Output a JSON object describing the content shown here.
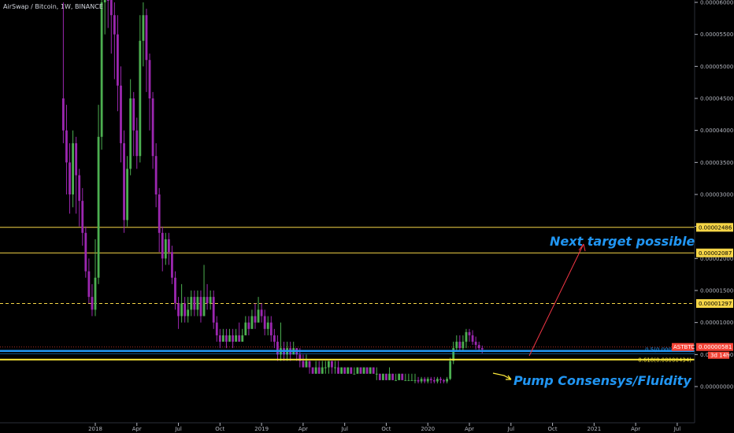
{
  "header": {
    "title": "AirSwap / Bitcoin, 1W, BINANCE"
  },
  "colors": {
    "up": "#4caf50",
    "down": "#9c27b0",
    "hline": "#f5d547",
    "support_blue": "#2196f3",
    "support_yellow": "#ffeb3b",
    "current_price": "#f44336",
    "annotation": "#2196f3",
    "arrow_red": "#f23645",
    "arrow_yellow": "#ffeb3b"
  },
  "chart_data": {
    "type": "candlestick",
    "symbol": "ASTBTC",
    "interval": "1W",
    "exchange": "BINANCE",
    "ylim": [
      0.0,
      6e-05
    ],
    "y_ticks": [
      "0.00006000",
      "0.00005500",
      "0.00005000",
      "0.00004500",
      "0.00004000",
      "0.00003500",
      "0.00003000",
      "0.00002500",
      "0.00002000",
      "0.00001500",
      "0.00001000",
      "0.00000500",
      "0.00000000"
    ],
    "x_ticks": [
      {
        "label": "2018",
        "week": 0
      },
      {
        "label": "Apr",
        "week": 13
      },
      {
        "label": "Jul",
        "week": 26
      },
      {
        "label": "Oct",
        "week": 39
      },
      {
        "label": "2019",
        "week": 52
      },
      {
        "label": "Apr",
        "week": 65
      },
      {
        "label": "Jul",
        "week": 78
      },
      {
        "label": "Oct",
        "week": 91
      },
      {
        "label": "2020",
        "week": 104
      },
      {
        "label": "Apr",
        "week": 117
      },
      {
        "label": "Jul",
        "week": 130
      },
      {
        "label": "Oct",
        "week": 143
      },
      {
        "label": "2021",
        "week": 156
      },
      {
        "label": "Apr",
        "week": 169
      },
      {
        "label": "Jul",
        "week": 182
      }
    ],
    "first_week": -10,
    "candles": [
      [
        4.5e-05,
        4e-05,
        6e-05,
        3.8e-05
      ],
      [
        4e-05,
        3.5e-05,
        4.4e-05,
        3e-05
      ],
      [
        3.5e-05,
        3e-05,
        3.8e-05,
        2.7e-05
      ],
      [
        3e-05,
        3.8e-05,
        4e-05,
        2.8e-05
      ],
      [
        3.8e-05,
        3.3e-05,
        3.9e-05,
        2.7e-05
      ],
      [
        3.3e-05,
        2.9e-05,
        3.4e-05,
        2.5e-05
      ],
      [
        2.9e-05,
        2.4e-05,
        3.1e-05,
        2.2e-05
      ],
      [
        2.4e-05,
        1.8e-05,
        2.5e-05,
        1.7e-05
      ],
      [
        1.8e-05,
        1.4e-05,
        2e-05,
        1.3e-05
      ],
      [
        1.4e-05,
        1.2e-05,
        1.6e-05,
        1.1e-05
      ],
      [
        1.2e-05,
        1.7e-05,
        2.3e-05,
        1.1e-05
      ],
      [
        1.7e-05,
        3.9e-05,
        4.4e-05,
        1.6e-05
      ],
      [
        3.9e-05,
        6e-05,
        6.2e-05,
        3.7e-05
      ],
      [
        6e-05,
        6.5e-05,
        7e-05,
        5.5e-05
      ],
      [
        6.5e-05,
        6.3e-05,
        6.8e-05,
        5.6e-05
      ],
      [
        6.3e-05,
        5.8e-05,
        6.4e-05,
        5.2e-05
      ],
      [
        5.8e-05,
        5.5e-05,
        6e-05,
        4.8e-05
      ],
      [
        5.5e-05,
        4.7e-05,
        5.8e-05,
        4.3e-05
      ],
      [
        4.7e-05,
        3.8e-05,
        5e-05,
        3.5e-05
      ],
      [
        3.8e-05,
        2.6e-05,
        4e-05,
        2.4e-05
      ],
      [
        2.6e-05,
        3.4e-05,
        3.6e-05,
        2.5e-05
      ],
      [
        3.4e-05,
        4.5e-05,
        4.8e-05,
        3.3e-05
      ],
      [
        4.5e-05,
        4e-05,
        4.6e-05,
        3.6e-05
      ],
      [
        4e-05,
        3.6e-05,
        4.2e-05,
        3.4e-05
      ],
      [
        3.6e-05,
        5.4e-05,
        5.8e-05,
        3.5e-05
      ],
      [
        5.4e-05,
        5.8e-05,
        6e-05,
        5e-05
      ],
      [
        5.8e-05,
        5.1e-05,
        5.9e-05,
        4.6e-05
      ],
      [
        5.1e-05,
        4.5e-05,
        5.2e-05,
        4e-05
      ],
      [
        4.5e-05,
        3.6e-05,
        4.6e-05,
        3.4e-05
      ],
      [
        3.6e-05,
        3e-05,
        3.8e-05,
        2.8e-05
      ],
      [
        3e-05,
        2.4e-05,
        3.1e-05,
        2.1e-05
      ],
      [
        2.4e-05,
        2e-05,
        2.5e-05,
        1.8e-05
      ],
      [
        2e-05,
        2.3e-05,
        2.4e-05,
        1.9e-05
      ],
      [
        2.3e-05,
        2.1e-05,
        2.4e-05,
        1.9e-05
      ],
      [
        2.1e-05,
        1.7e-05,
        2.2e-05,
        1.6e-05
      ],
      [
        1.7e-05,
        1.3e-05,
        1.8e-05,
        1.2e-05
      ],
      [
        1.3e-05,
        1.1e-05,
        1.4e-05,
        9e-06
      ],
      [
        1.1e-05,
        1.3e-05,
        1.6e-05,
        1e-05
      ],
      [
        1.3e-05,
        1.1e-05,
        1.4e-05,
        1e-05
      ],
      [
        1.1e-05,
        1.2e-05,
        1.4e-05,
        1e-05
      ],
      [
        1.2e-05,
        1.4e-05,
        1.5e-05,
        1.1e-05
      ],
      [
        1.4e-05,
        1.2e-05,
        1.5e-05,
        1.1e-05
      ],
      [
        1.2e-05,
        1.4e-05,
        1.5e-05,
        1.1e-05
      ],
      [
        1.4e-05,
        1.1e-05,
        1.5e-05,
        1e-05
      ],
      [
        1.1e-05,
        1.4e-05,
        1.9e-05,
        1.1e-05
      ],
      [
        1.4e-05,
        1.3e-05,
        1.6e-05,
        1.2e-05
      ],
      [
        1.3e-05,
        1.4e-05,
        1.5e-05,
        1.2e-05
      ],
      [
        1.4e-05,
        1e-05,
        1.5e-05,
        9e-06
      ],
      [
        1e-05,
        8e-06,
        1.1e-05,
        7e-06
      ],
      [
        8e-06,
        7e-06,
        9e-06,
        6e-06
      ],
      [
        7e-06,
        8e-06,
        9e-06,
        7e-06
      ],
      [
        8e-06,
        7e-06,
        9e-06,
        6e-06
      ],
      [
        7e-06,
        8e-06,
        9e-06,
        7e-06
      ],
      [
        8e-06,
        7e-06,
        9e-06,
        6e-06
      ],
      [
        7e-06,
        8e-06,
        9e-06,
        7e-06
      ],
      [
        8e-06,
        7e-06,
        1e-05,
        7e-06
      ],
      [
        7e-06,
        8e-06,
        9e-06,
        7e-06
      ],
      [
        8e-06,
        1e-05,
        1.1e-05,
        8e-06
      ],
      [
        1e-05,
        9e-06,
        1.1e-05,
        8e-06
      ],
      [
        9e-06,
        1.1e-05,
        1.2e-05,
        9e-06
      ],
      [
        1.1e-05,
        1e-05,
        1.3e-05,
        9e-06
      ],
      [
        1e-05,
        1.2e-05,
        1.4e-05,
        1e-05
      ],
      [
        1.2e-05,
        1.1e-05,
        1.3e-05,
        1e-05
      ],
      [
        1.1e-05,
        9e-06,
        1.2e-05,
        8e-06
      ],
      [
        9e-06,
        1e-05,
        1.1e-05,
        8e-06
      ],
      [
        1e-05,
        8e-06,
        1.1e-05,
        7e-06
      ],
      [
        8e-06,
        7e-06,
        9e-06,
        6e-06
      ],
      [
        7e-06,
        5e-06,
        8e-06,
        4e-06
      ],
      [
        5e-06,
        6e-06,
        1e-05,
        4e-06
      ],
      [
        6e-06,
        5e-06,
        7e-06,
        4e-06
      ],
      [
        5e-06,
        6e-06,
        7e-06,
        4e-06
      ],
      [
        6e-06,
        5e-06,
        7e-06,
        4e-06
      ],
      [
        5e-06,
        6e-06,
        7e-06,
        5e-06
      ],
      [
        6e-06,
        5e-06,
        6e-06,
        4e-06
      ],
      [
        5e-06,
        4e-06,
        6e-06,
        3e-06
      ],
      [
        4e-06,
        3e-06,
        5e-06,
        3e-06
      ],
      [
        3e-06,
        4e-06,
        5e-06,
        3e-06
      ],
      [
        4e-06,
        3e-06,
        4e-06,
        2e-06
      ],
      [
        3e-06,
        2e-06,
        3e-06,
        2e-06
      ],
      [
        2e-06,
        3e-06,
        4e-06,
        2e-06
      ],
      [
        3e-06,
        2e-06,
        4e-06,
        2e-06
      ],
      [
        2e-06,
        3e-06,
        4e-06,
        2e-06
      ],
      [
        3e-06,
        3e-06,
        4e-06,
        2e-06
      ],
      [
        3e-06,
        4e-06,
        4e-06,
        2e-06
      ],
      [
        4e-06,
        3e-06,
        4e-06,
        2e-06
      ],
      [
        3e-06,
        3e-06,
        4e-06,
        2e-06
      ],
      [
        3e-06,
        2e-06,
        4e-06,
        2e-06
      ],
      [
        2e-06,
        3e-06,
        3e-06,
        2e-06
      ],
      [
        3e-06,
        2e-06,
        3e-06,
        2e-06
      ],
      [
        2e-06,
        3e-06,
        3e-06,
        2e-06
      ],
      [
        3e-06,
        2e-06,
        3e-06,
        2e-06
      ],
      [
        2e-06,
        2e-06,
        3e-06,
        2e-06
      ],
      [
        2e-06,
        3e-06,
        3e-06,
        2e-06
      ],
      [
        3e-06,
        2e-06,
        3e-06,
        2e-06
      ],
      [
        2e-06,
        3e-06,
        3e-06,
        2e-06
      ],
      [
        3e-06,
        2e-06,
        3e-06,
        2e-06
      ],
      [
        2e-06,
        3e-06,
        3e-06,
        2e-06
      ],
      [
        3e-06,
        2e-06,
        3e-06,
        2e-06
      ],
      [
        2e-06,
        2e-06,
        3e-06,
        1e-06
      ],
      [
        2e-06,
        1e-06,
        2e-06,
        1e-06
      ],
      [
        1e-06,
        2e-06,
        2e-06,
        1e-06
      ],
      [
        2e-06,
        1e-06,
        2e-06,
        1e-06
      ],
      [
        1e-06,
        2e-06,
        3e-06,
        1e-06
      ],
      [
        2e-06,
        1e-06,
        2e-06,
        1e-06
      ],
      [
        1e-06,
        1e-06,
        2e-06,
        1e-06
      ],
      [
        1e-06,
        2e-06,
        2e-06,
        1e-06
      ],
      [
        2e-06,
        1e-06,
        2e-06,
        1e-06
      ],
      [
        1e-06,
        1e-06,
        2e-06,
        1e-06
      ],
      [
        1e-06,
        1e-06,
        2e-06,
        1e-06
      ],
      [
        1e-06,
        1e-06,
        2e-06,
        1e-06
      ],
      [
        1e-06,
        1e-06,
        2e-06,
        5e-07
      ],
      [
        1e-06,
        8e-07,
        1.5e-06,
        5e-07
      ],
      [
        8e-07,
        1.2e-06,
        1.5e-06,
        5e-07
      ],
      [
        1.2e-06,
        8e-07,
        1.5e-06,
        5e-07
      ],
      [
        8e-07,
        1.2e-06,
        1.5e-06,
        5e-07
      ],
      [
        1.2e-06,
        1e-06,
        1.5e-06,
        5e-07
      ],
      [
        1e-06,
        8e-07,
        1.5e-06,
        5e-07
      ],
      [
        8e-07,
        1.2e-06,
        1.5e-06,
        5e-07
      ],
      [
        1.2e-06,
        1e-06,
        1.5e-06,
        5e-07
      ],
      [
        1e-06,
        8e-07,
        1.2e-06,
        5e-07
      ],
      [
        8e-07,
        1.2e-06,
        1.5e-06,
        5e-07
      ],
      [
        1.2e-06,
        4e-06,
        4.5e-06,
        1e-06
      ],
      [
        4e-06,
        6e-06,
        7e-06,
        3.5e-06
      ],
      [
        6e-06,
        7e-06,
        8e-06,
        5.5e-06
      ],
      [
        7e-06,
        6e-06,
        8e-06,
        5.5e-06
      ],
      [
        6e-06,
        7e-06,
        8e-06,
        5.5e-06
      ],
      [
        7e-06,
        8.5e-06,
        9e-06,
        6e-06
      ],
      [
        8.5e-06,
        8e-06,
        9e-06,
        7e-06
      ],
      [
        8e-06,
        7e-06,
        8.8e-06,
        6.5e-06
      ],
      [
        7e-06,
        6.5e-06,
        7.8e-06,
        5.8e-06
      ],
      [
        6.5e-06,
        6e-06,
        7e-06,
        5.5e-06
      ],
      [
        6e-06,
        5.8e-06,
        6.4e-06,
        5.2e-06
      ]
    ],
    "horizontal_lines": [
      {
        "price": 2.486e-05,
        "label": "0.00002486",
        "style": "solid",
        "color": "#f5d547"
      },
      {
        "price": 2.087e-05,
        "label": "0.00002087",
        "style": "solid",
        "color": "#f5d547"
      },
      {
        "price": 1.297e-05,
        "label": "0.00001297",
        "style": "dashed",
        "color": "#f5d547"
      }
    ],
    "current_price": {
      "symbol": "ASTBTC",
      "label": "0.00000581",
      "countdown": "3d 14h",
      "price": 5.81e-06
    },
    "fib_levels": [
      {
        "text": "0.5(0.00000520)",
        "price": 5.2e-06,
        "color": "#2196f3"
      },
      {
        "text": "0.618(0.00000434)",
        "price": 4.34e-06,
        "color": "#ffeb3b"
      }
    ],
    "annotations": [
      {
        "text": "Next target possible"
      },
      {
        "text": "Pump Consensys/Fluidity"
      }
    ]
  }
}
